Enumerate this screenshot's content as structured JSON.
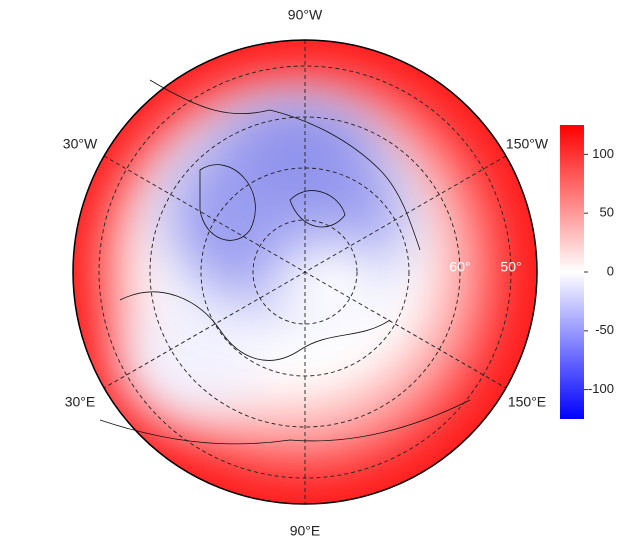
{
  "map": {
    "longitude_labels": [
      "90°W",
      "30°W",
      "150°W",
      "30°E",
      "150°E",
      "90°E"
    ],
    "latitude_labels": [
      "60°",
      "50°"
    ]
  },
  "colorbar": {
    "range": [
      -125,
      125
    ],
    "ticks": [
      100,
      50,
      0,
      -50,
      -100
    ],
    "colors": [
      "#0000ff",
      "#ffffff",
      "#ff0000"
    ]
  }
}
